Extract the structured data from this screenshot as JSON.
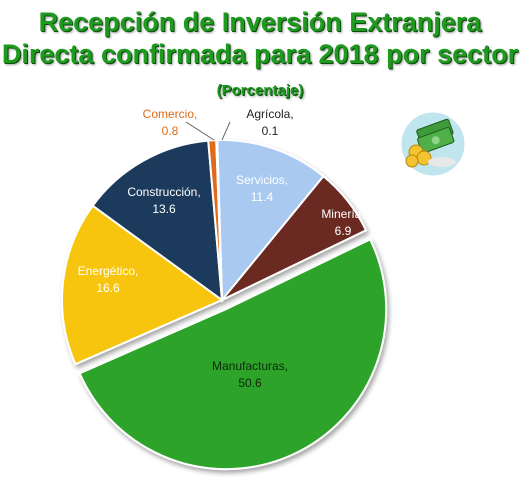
{
  "chart_data": {
    "type": "pie",
    "title": "Recepción de Inversión Extranjera Directa confirmada para 2018 por sector",
    "subtitle": "(Porcentaje)",
    "unit": "%",
    "start_angle_deg": -1.7,
    "slices": [
      {
        "label": "Servicios,",
        "value": 11.4,
        "color": "#a9c9f0",
        "label_color": "#ffffff",
        "exploded": false
      },
      {
        "label": "Minería,",
        "value": 6.9,
        "color": "#6b2a22",
        "label_color": "#ffffff",
        "exploded": false
      },
      {
        "label": "Manufacturas,",
        "value": 50.6,
        "color": "#2ea32a",
        "label_color": "#0d2a0d",
        "exploded": true
      },
      {
        "label": "Energético,",
        "value": 16.6,
        "color": "#f7c510",
        "label_color": "#ffffff",
        "exploded": false
      },
      {
        "label": "Construcción,",
        "value": 13.6,
        "color": "#1f3a5c",
        "label_color": "#ffffff",
        "exploded": false
      },
      {
        "label": "Comercio,",
        "value": 0.8,
        "color": "#e06a1a",
        "label_color": "#e06a1a",
        "exploded": false
      },
      {
        "label": "Agrícola,",
        "value": 0.1,
        "color": "#2a3a6a",
        "label_color": "#222222",
        "exploded": false
      }
    ]
  },
  "icon": {
    "name": "money-icon"
  }
}
